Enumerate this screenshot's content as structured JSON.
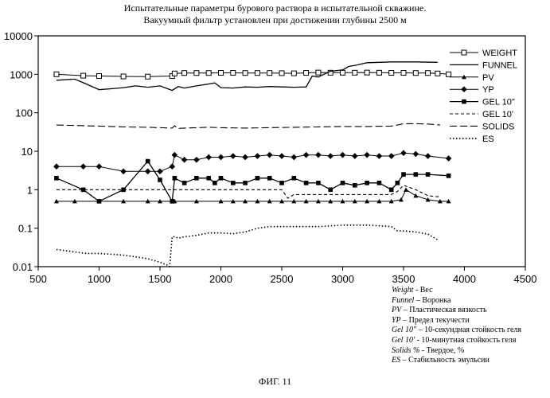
{
  "titles": {
    "line1": "Испытательные параметры бурового раствора в испытательной скважине.",
    "line2": "Вакуумный фильтр установлен при достижении глубины 2500 м"
  },
  "caption": "ФИГ. 11",
  "glossary": [
    {
      "term": "Weight",
      "desc": " - Вес"
    },
    {
      "term": "Funnel",
      "desc": " – Воронка"
    },
    {
      "term": "PV",
      "desc": " – Пластическая вязкость"
    },
    {
      "term": "YP",
      "desc": " – Предел текучести"
    },
    {
      "term": "Gel 10\"",
      "desc": " – 10-секундная стойкость геля"
    },
    {
      "term": "Gel 10'",
      "desc": " - 10-минутная стойкость геля"
    },
    {
      "term": "Solids %",
      "desc": " - Твердое, %"
    },
    {
      "term": "ES",
      "desc": " – Стабильность эмульсии"
    }
  ],
  "chart_data": {
    "type": "line",
    "title": "",
    "xlabel": "",
    "ylabel": "",
    "xlim": [
      500,
      4500
    ],
    "ylim": [
      0.01,
      10000
    ],
    "yscale": "log",
    "grid": false,
    "legend_position": "right",
    "xticks": [
      "500",
      "1000",
      "1500",
      "2000",
      "2500",
      "3000",
      "3500",
      "4000",
      "4500"
    ],
    "yticks": [
      "0.01",
      "0.1",
      "1",
      "10",
      "100",
      "1000",
      "10000"
    ],
    "series": [
      {
        "name": "WEIGHT",
        "style": "open-square",
        "x": [
          650,
          870,
          1000,
          1200,
          1400,
          1600,
          1620,
          1700,
          1800,
          1900,
          2000,
          2100,
          2200,
          2300,
          2400,
          2500,
          2600,
          2700,
          2800,
          2900,
          3000,
          3100,
          3200,
          3300,
          3400,
          3500,
          3600,
          3700,
          3780,
          3870
        ],
        "y": [
          1000,
          920,
          900,
          880,
          870,
          900,
          1050,
          1080,
          1080,
          1080,
          1090,
          1090,
          1080,
          1080,
          1080,
          1070,
          1060,
          1090,
          1110,
          1100,
          1100,
          1100,
          1110,
          1100,
          1090,
          1090,
          1080,
          1080,
          1050,
          1000
        ]
      },
      {
        "name": "FUNNEL",
        "style": "solid",
        "x": [
          650,
          800,
          900,
          1000,
          1100,
          1200,
          1300,
          1400,
          1500,
          1600,
          1650,
          1700,
          1800,
          1900,
          1950,
          2000,
          2100,
          2200,
          2300,
          2400,
          2500,
          2600,
          2700,
          2750,
          2800,
          2900,
          3000,
          3050,
          3100,
          3200,
          3400,
          3600,
          3780
        ],
        "y": [
          700,
          750,
          550,
          400,
          420,
          450,
          500,
          460,
          500,
          380,
          480,
          440,
          500,
          560,
          600,
          450,
          440,
          470,
          460,
          480,
          470,
          460,
          470,
          900,
          850,
          1200,
          1300,
          1600,
          1700,
          2000,
          2100,
          2100,
          2050
        ]
      },
      {
        "name": "PV",
        "style": "filled-triangle",
        "x": [
          650,
          800,
          1000,
          1200,
          1400,
          1500,
          1600,
          1620,
          1800,
          2000,
          2100,
          2200,
          2300,
          2400,
          2500,
          2600,
          2700,
          2800,
          2900,
          3000,
          3100,
          3200,
          3300,
          3400,
          3480,
          3520,
          3600,
          3700,
          3800,
          3870
        ],
        "y": [
          0.5,
          0.5,
          0.5,
          0.5,
          0.5,
          0.5,
          0.5,
          0.5,
          0.5,
          0.5,
          0.5,
          0.5,
          0.5,
          0.5,
          0.5,
          0.5,
          0.5,
          0.5,
          0.5,
          0.5,
          0.5,
          0.5,
          0.5,
          0.5,
          0.55,
          1.0,
          0.7,
          0.55,
          0.5,
          0.5
        ]
      },
      {
        "name": "YP",
        "style": "filled-diamond",
        "x": [
          650,
          870,
          1000,
          1200,
          1400,
          1500,
          1600,
          1620,
          1700,
          1800,
          1900,
          2000,
          2100,
          2200,
          2300,
          2400,
          2500,
          2600,
          2700,
          2800,
          2900,
          3000,
          3100,
          3200,
          3300,
          3400,
          3500,
          3600,
          3700,
          3870
        ],
        "y": [
          4,
          4,
          4,
          3,
          3,
          3,
          4,
          8,
          6,
          6,
          7,
          7,
          7.5,
          7,
          7.5,
          8,
          7.5,
          7,
          8,
          8,
          7.5,
          8,
          7.5,
          8,
          7.5,
          7.5,
          9,
          8.5,
          7.5,
          6.5
        ]
      },
      {
        "name": "GEL 10\"",
        "style": "filled-square",
        "x": [
          650,
          870,
          1000,
          1200,
          1400,
          1500,
          1600,
          1620,
          1700,
          1800,
          1900,
          1950,
          2000,
          2100,
          2200,
          2300,
          2400,
          2500,
          2600,
          2700,
          2800,
          2900,
          3000,
          3100,
          3200,
          3300,
          3400,
          3450,
          3500,
          3600,
          3700,
          3870
        ],
        "y": [
          2,
          1,
          0.5,
          1,
          5.5,
          1.8,
          0.5,
          2,
          1.5,
          2,
          2,
          1.5,
          2,
          1.5,
          1.5,
          2,
          2,
          1.5,
          2,
          1.5,
          1.5,
          1,
          1.5,
          1.3,
          1.5,
          1.5,
          1,
          1.5,
          2.5,
          2.5,
          2.5,
          2.3
        ]
      },
      {
        "name": "GEL 10'",
        "style": "dashed",
        "x": [
          650,
          1000,
          1500,
          1620,
          1900,
          2000,
          2400,
          2500,
          2550,
          2600,
          3000,
          3400,
          3450,
          3500,
          3600,
          3700,
          3800
        ],
        "y": [
          1,
          1,
          1,
          1,
          1,
          1,
          1,
          1,
          0.6,
          0.75,
          0.75,
          0.75,
          0.9,
          1.3,
          1.0,
          0.7,
          0.65
        ]
      },
      {
        "name": "SOLIDS",
        "style": "long-dash",
        "x": [
          650,
          1000,
          1200,
          1400,
          1600,
          1620,
          1650,
          1700,
          1800,
          1900,
          2000,
          2200,
          2400,
          2600,
          2800,
          3000,
          3200,
          3400,
          3450,
          3500,
          3600,
          3700,
          3800
        ],
        "y": [
          48,
          45,
          43,
          42,
          40,
          46,
          39,
          40,
          41,
          42,
          41,
          40,
          41,
          42,
          43,
          44,
          44,
          45,
          48,
          52,
          52,
          51,
          48
        ]
      },
      {
        "name": "ES",
        "style": "dotted",
        "x": [
          650,
          800,
          900,
          1000,
          1100,
          1200,
          1300,
          1400,
          1500,
          1560,
          1580,
          1600,
          1620,
          1650,
          1700,
          1800,
          1900,
          2000,
          2100,
          2200,
          2300,
          2400,
          2500,
          2600,
          2800,
          3000,
          3200,
          3400,
          3450,
          3500,
          3600,
          3700,
          3780
        ],
        "y": [
          0.028,
          0.024,
          0.022,
          0.022,
          0.021,
          0.02,
          0.018,
          0.016,
          0.013,
          0.011,
          0.01,
          0.06,
          0.06,
          0.055,
          0.06,
          0.065,
          0.075,
          0.075,
          0.072,
          0.08,
          0.1,
          0.11,
          0.11,
          0.11,
          0.11,
          0.12,
          0.12,
          0.11,
          0.085,
          0.085,
          0.08,
          0.07,
          0.05
        ]
      }
    ]
  }
}
